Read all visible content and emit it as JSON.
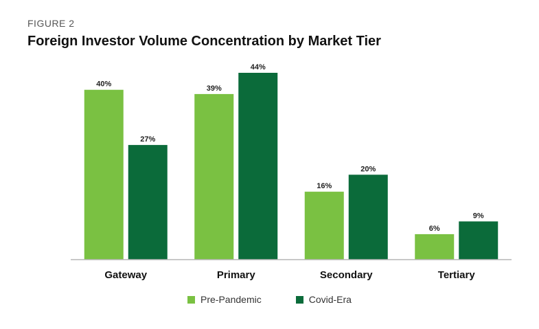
{
  "figure_label": "FIGURE 2",
  "chart_data": {
    "type": "bar",
    "title": "Foreign Investor Volume Concentration by Market Tier",
    "categories": [
      "Gateway",
      "Primary",
      "Secondary",
      "Tertiary"
    ],
    "series": [
      {
        "name": "Pre-Pandemic",
        "color": "#7ac142",
        "values": [
          40,
          39,
          16,
          6
        ],
        "labels": [
          "40%",
          "39%",
          "16%",
          "6%"
        ]
      },
      {
        "name": "Covid-Era",
        "color": "#0b6b3a",
        "values": [
          27,
          44,
          20,
          9
        ],
        "labels": [
          "27%",
          "44%",
          "20%",
          "9%"
        ]
      }
    ],
    "xlabel": "",
    "ylabel": "",
    "ylim": [
      0,
      44
    ],
    "grid": false,
    "legend_position": "bottom-center"
  }
}
